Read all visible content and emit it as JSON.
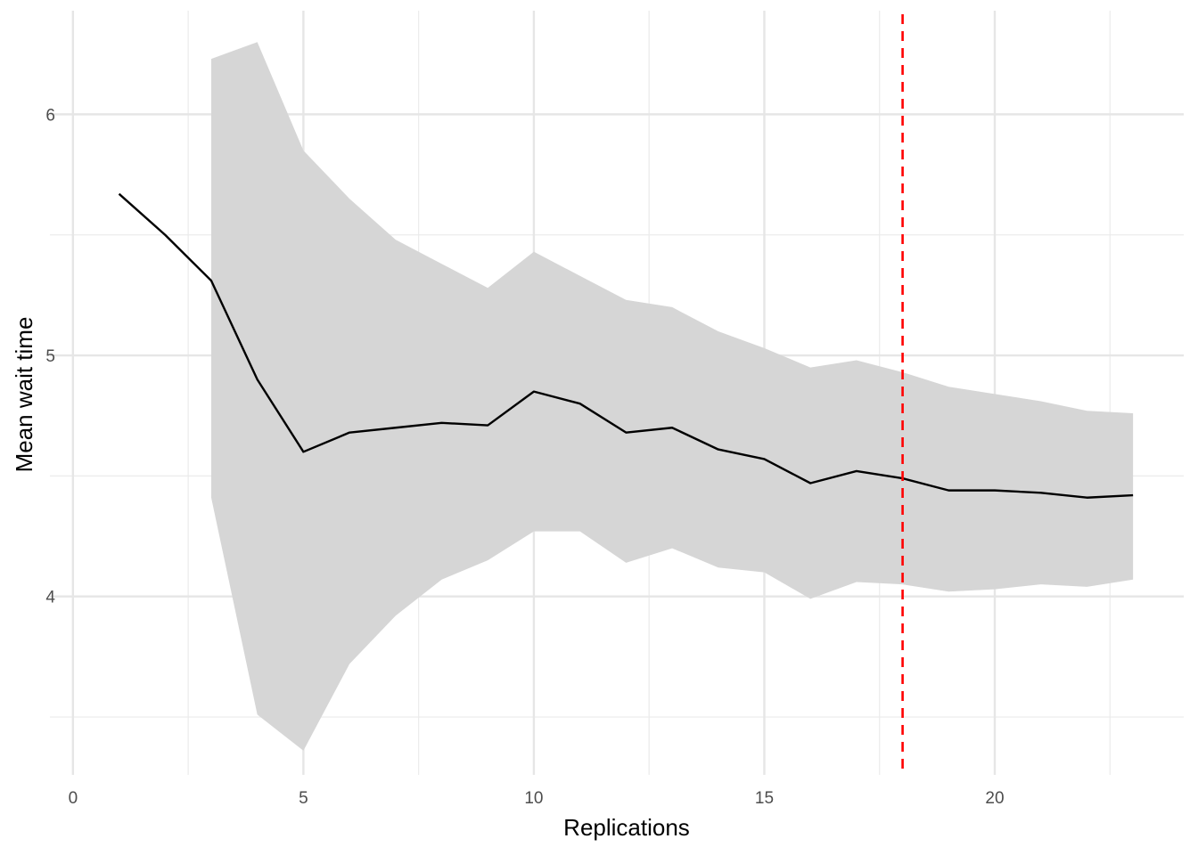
{
  "chart_data": {
    "type": "line",
    "title": "",
    "xlabel": "Replications",
    "ylabel": "Mean wait time",
    "xlim": [
      -0.5,
      24.1
    ],
    "ylim": [
      3.26,
      6.43
    ],
    "x_ticks": [
      0,
      5,
      10,
      15,
      20
    ],
    "x_minor_ticks": [
      2.5,
      7.5,
      12.5,
      17.5,
      22.5
    ],
    "y_ticks": [
      4,
      5,
      6
    ],
    "y_minor_ticks": [
      3.5,
      4.5,
      5.5
    ],
    "grid": true,
    "series": [
      {
        "x": [
          1,
          2,
          3,
          4,
          5,
          6,
          7,
          8,
          9,
          10,
          11,
          12,
          13,
          14,
          15,
          16,
          17,
          18,
          19,
          20,
          21,
          22,
          23
        ],
        "values": [
          5.67,
          5.5,
          5.31,
          4.9,
          4.6,
          4.68,
          4.7,
          4.72,
          4.71,
          4.85,
          4.8,
          4.68,
          4.7,
          4.61,
          4.57,
          4.47,
          4.52,
          4.49,
          4.44,
          4.44,
          4.43,
          4.41,
          4.42
        ],
        "color": "#000000"
      }
    ],
    "ribbon": {
      "x": [
        3,
        4,
        5,
        6,
        7,
        8,
        9,
        10,
        11,
        12,
        13,
        14,
        15,
        16,
        17,
        18,
        19,
        20,
        21,
        22,
        23
      ],
      "upper": [
        6.23,
        6.3,
        5.85,
        5.65,
        5.48,
        5.38,
        5.28,
        5.43,
        5.33,
        5.23,
        5.2,
        5.1,
        5.03,
        4.95,
        4.98,
        4.93,
        4.87,
        4.84,
        4.81,
        4.77,
        4.76
      ],
      "lower": [
        4.41,
        3.51,
        3.36,
        3.72,
        3.92,
        4.07,
        4.15,
        4.27,
        4.27,
        4.14,
        4.2,
        4.12,
        4.1,
        3.99,
        4.06,
        4.05,
        4.02,
        4.03,
        4.05,
        4.04,
        4.07
      ],
      "color": "#d6d6d6"
    },
    "reference_line": {
      "x": 18,
      "color": "#ff0000",
      "style": "dashed"
    }
  }
}
